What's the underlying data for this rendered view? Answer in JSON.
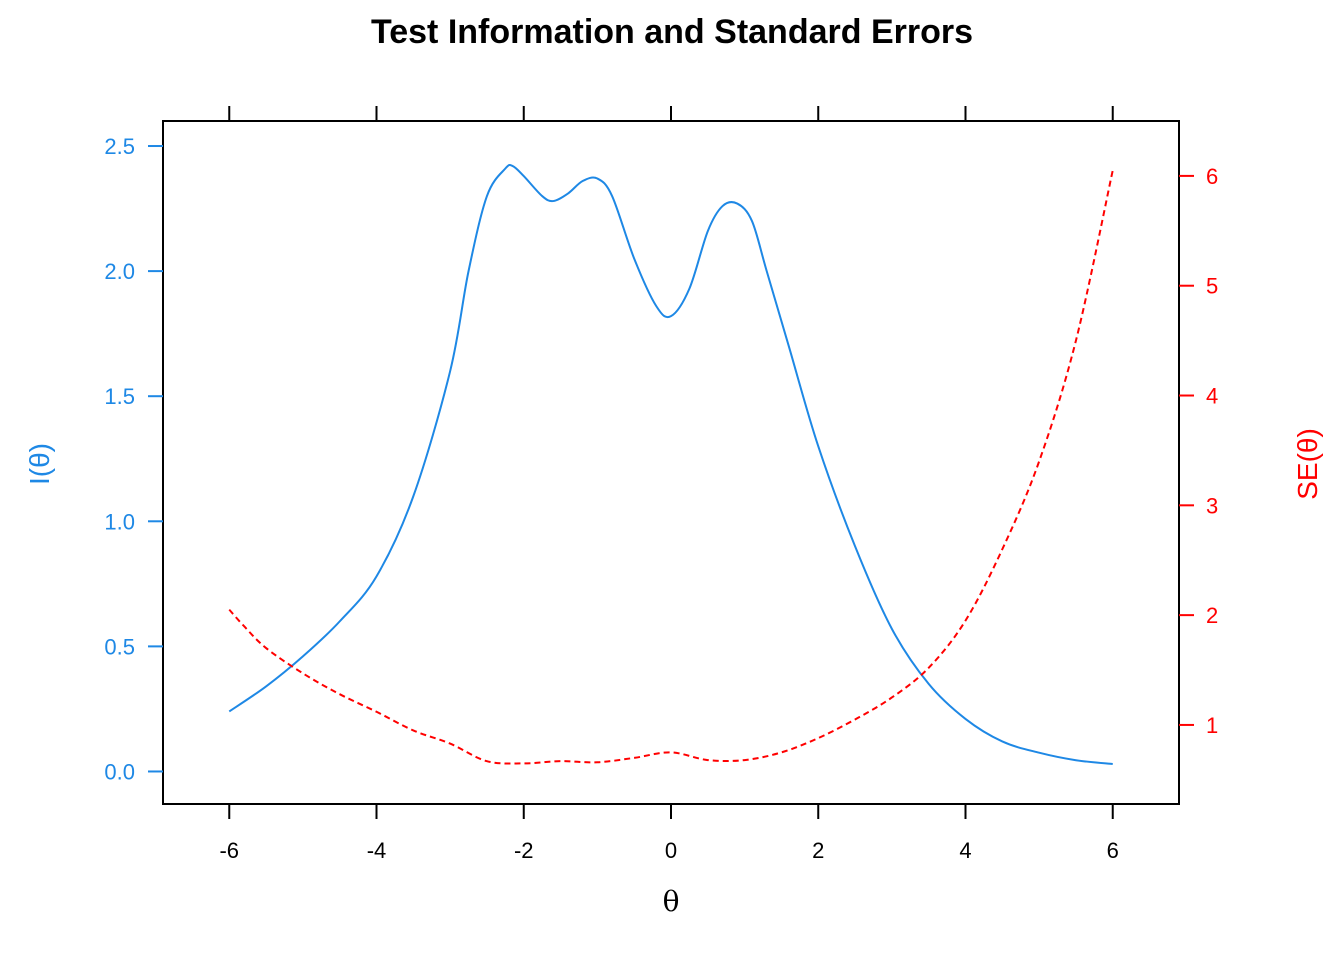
{
  "chart_data": {
    "type": "line",
    "title": "Test Information and Standard Errors",
    "xlabel": "θ",
    "ylabel_left": "I(θ)",
    "ylabel_right": "SE(θ)",
    "xlim": [
      -6.9,
      6.9
    ],
    "ylim_left": [
      -0.13,
      2.6
    ],
    "ylim_right": [
      0.28,
      6.5
    ],
    "x_ticks": [
      -6,
      -4,
      -2,
      0,
      2,
      4,
      6
    ],
    "x_tick_labels": [
      "-6",
      "-4",
      "-2",
      "0",
      "2",
      "4",
      "6"
    ],
    "y_left_ticks": [
      0.0,
      0.5,
      1.0,
      1.5,
      2.0,
      2.5
    ],
    "y_left_tick_labels": [
      "0.0",
      "0.5",
      "1.0",
      "1.5",
      "2.0",
      "2.5"
    ],
    "y_right_ticks": [
      1,
      2,
      3,
      4,
      5,
      6
    ],
    "y_right_tick_labels": [
      "1",
      "2",
      "3",
      "4",
      "5",
      "6"
    ],
    "grid": false,
    "colors": {
      "information": "#1E88E5",
      "se": "#FF0000",
      "axis": "#000000"
    },
    "series": [
      {
        "axis": "left",
        "style": "solid",
        "x": [
          -6.0,
          -5.5,
          -5.0,
          -4.5,
          -4.0,
          -3.5,
          -3.0,
          -2.75,
          -2.5,
          -2.25,
          -2.15,
          -2.0,
          -1.75,
          -1.6,
          -1.4,
          -1.2,
          -1.0,
          -0.8,
          -0.5,
          -0.2,
          0.0,
          0.25,
          0.5,
          0.7,
          0.9,
          1.1,
          1.3,
          1.6,
          2.0,
          2.5,
          3.0,
          3.5,
          4.0,
          4.5,
          5.0,
          5.5,
          6.0
        ],
        "y": [
          0.24,
          0.34,
          0.46,
          0.6,
          0.78,
          1.1,
          1.6,
          2.0,
          2.3,
          2.41,
          2.42,
          2.38,
          2.3,
          2.28,
          2.31,
          2.36,
          2.37,
          2.3,
          2.05,
          1.86,
          1.82,
          1.93,
          2.16,
          2.26,
          2.27,
          2.2,
          2.0,
          1.7,
          1.3,
          0.9,
          0.57,
          0.35,
          0.21,
          0.12,
          0.075,
          0.045,
          0.03
        ]
      },
      {
        "axis": "right",
        "style": "dashed",
        "x": [
          -6.0,
          -5.8,
          -5.5,
          -5.0,
          -4.5,
          -4.0,
          -3.5,
          -3.0,
          -2.5,
          -2.0,
          -1.5,
          -1.0,
          -0.5,
          0.0,
          0.5,
          1.0,
          1.5,
          2.0,
          2.5,
          3.0,
          3.5,
          4.0,
          4.5,
          5.0,
          5.5,
          6.0
        ],
        "y": [
          2.05,
          1.9,
          1.7,
          1.47,
          1.28,
          1.12,
          0.95,
          0.83,
          0.67,
          0.65,
          0.67,
          0.66,
          0.7,
          0.75,
          0.68,
          0.68,
          0.75,
          0.88,
          1.05,
          1.25,
          1.52,
          1.95,
          2.6,
          3.4,
          4.5,
          6.05
        ]
      }
    ]
  }
}
